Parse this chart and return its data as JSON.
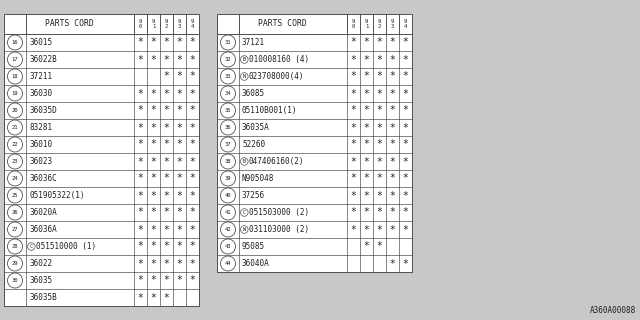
{
  "bg_color": "#c8c8c8",
  "table_bg": "#ffffff",
  "border_color": "#505050",
  "text_color": "#202020",
  "footnote": "A360A00088",
  "left_table": {
    "rows": [
      {
        "num": "16",
        "part": "36015",
        "prefix": "",
        "cols": [
          1,
          1,
          1,
          1,
          1
        ]
      },
      {
        "num": "17",
        "part": "36022B",
        "prefix": "",
        "cols": [
          1,
          1,
          1,
          1,
          1
        ]
      },
      {
        "num": "18",
        "part": "37211",
        "prefix": "",
        "cols": [
          0,
          0,
          1,
          1,
          1
        ]
      },
      {
        "num": "19",
        "part": "36030",
        "prefix": "",
        "cols": [
          1,
          1,
          1,
          1,
          1
        ]
      },
      {
        "num": "20",
        "part": "36035D",
        "prefix": "",
        "cols": [
          1,
          1,
          1,
          1,
          1
        ]
      },
      {
        "num": "21",
        "part": "83281",
        "prefix": "",
        "cols": [
          1,
          1,
          1,
          1,
          1
        ]
      },
      {
        "num": "22",
        "part": "36010",
        "prefix": "",
        "cols": [
          1,
          1,
          1,
          1,
          1
        ]
      },
      {
        "num": "23",
        "part": "36023",
        "prefix": "",
        "cols": [
          1,
          1,
          1,
          1,
          1
        ]
      },
      {
        "num": "24",
        "part": "36036C",
        "prefix": "",
        "cols": [
          1,
          1,
          1,
          1,
          1
        ]
      },
      {
        "num": "25",
        "part": "051905322(1)",
        "prefix": "",
        "cols": [
          1,
          1,
          1,
          1,
          1
        ]
      },
      {
        "num": "26",
        "part": "36020A",
        "prefix": "",
        "cols": [
          1,
          1,
          1,
          1,
          1
        ]
      },
      {
        "num": "27",
        "part": "36036A",
        "prefix": "",
        "cols": [
          1,
          1,
          1,
          1,
          1
        ]
      },
      {
        "num": "28",
        "part": "051510000 (1)",
        "prefix": "C",
        "cols": [
          1,
          1,
          1,
          1,
          1
        ]
      },
      {
        "num": "29",
        "part": "36022",
        "prefix": "",
        "cols": [
          1,
          1,
          1,
          1,
          1
        ]
      },
      {
        "num": "30",
        "part": "36035",
        "prefix": "",
        "cols": [
          1,
          1,
          1,
          1,
          1
        ],
        "show_num": true
      },
      {
        "num": "30",
        "part": "36035B",
        "prefix": "",
        "cols": [
          1,
          1,
          1,
          0,
          0
        ],
        "show_num": false
      }
    ]
  },
  "right_table": {
    "rows": [
      {
        "num": "31",
        "part": "37121",
        "prefix": "",
        "cols": [
          1,
          1,
          1,
          1,
          1
        ]
      },
      {
        "num": "32",
        "part": "010008160 (4)",
        "prefix": "B",
        "cols": [
          1,
          1,
          1,
          1,
          1
        ]
      },
      {
        "num": "33",
        "part": "023708000(4)",
        "prefix": "N",
        "cols": [
          1,
          1,
          1,
          1,
          1
        ]
      },
      {
        "num": "34",
        "part": "36085",
        "prefix": "",
        "cols": [
          1,
          1,
          1,
          1,
          1
        ]
      },
      {
        "num": "35",
        "part": "05110B001(1)",
        "prefix": "",
        "cols": [
          1,
          1,
          1,
          1,
          1
        ]
      },
      {
        "num": "36",
        "part": "36035A",
        "prefix": "",
        "cols": [
          1,
          1,
          1,
          1,
          1
        ]
      },
      {
        "num": "37",
        "part": "52260",
        "prefix": "",
        "cols": [
          1,
          1,
          1,
          1,
          1
        ]
      },
      {
        "num": "38",
        "part": "047406160(2)",
        "prefix": "B",
        "cols": [
          1,
          1,
          1,
          1,
          1
        ]
      },
      {
        "num": "39",
        "part": "N905048",
        "prefix": "",
        "cols": [
          1,
          1,
          1,
          1,
          1
        ]
      },
      {
        "num": "40",
        "part": "37256",
        "prefix": "",
        "cols": [
          1,
          1,
          1,
          1,
          1
        ]
      },
      {
        "num": "41",
        "part": "051503000 (2)",
        "prefix": "C",
        "cols": [
          1,
          1,
          1,
          1,
          1
        ]
      },
      {
        "num": "42",
        "part": "031103000 (2)",
        "prefix": "W",
        "cols": [
          1,
          1,
          1,
          1,
          1
        ]
      },
      {
        "num": "43",
        "part": "95085",
        "prefix": "",
        "cols": [
          0,
          1,
          1,
          0,
          0
        ]
      },
      {
        "num": "44",
        "part": "36040A",
        "prefix": "",
        "cols": [
          0,
          0,
          0,
          1,
          1
        ]
      }
    ]
  }
}
